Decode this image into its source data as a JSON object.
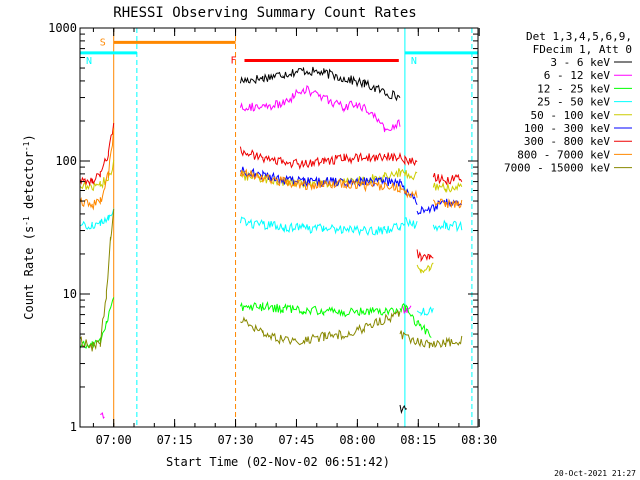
{
  "chart_data": {
    "type": "line",
    "title": "RHESSI Observing Summary Count Rates",
    "xlabel": "Start Time (02-Nov-02 06:51:42)",
    "ylabel_main": "Count Rate (s",
    "ylabel_sup1": "-1",
    "ylabel_mid": " detector",
    "ylabel_sup2": "-1",
    "ylabel_end": ")",
    "x_unit": "minutes since 06:51:42",
    "xlim": [
      0,
      98
    ],
    "ylim": [
      1,
      1000
    ],
    "yscale": "log",
    "x_ticks": [
      {
        "label": "07:00",
        "value": 8.3
      },
      {
        "label": "07:15",
        "value": 23.3
      },
      {
        "label": "07:30",
        "value": 38.3
      },
      {
        "label": "07:45",
        "value": 53.3
      },
      {
        "label": "08:00",
        "value": 68.3
      },
      {
        "label": "08:15",
        "value": 83.3
      },
      {
        "label": "08:30",
        "value": 98.3
      }
    ],
    "y_ticks": [
      {
        "label": "1",
        "value": 1
      },
      {
        "label": "10",
        "value": 10
      },
      {
        "label": "100",
        "value": 100
      },
      {
        "label": "1000",
        "value": 1000
      }
    ],
    "legend_header": [
      "Det 1,3,4,5,6,9,",
      "FDecim 1, Att 0"
    ],
    "legend_position": "outside-right",
    "timestamp": "20-Oct-2021 21:27",
    "series": [
      {
        "name": "3 - 6 keV",
        "color": "#000000",
        "segments": [
          {
            "x": [
              39.5,
              45,
              50,
              55,
              60,
              65,
              70,
              75,
              78.8
            ],
            "y": [
              400,
              420,
              450,
              480,
              460,
              420,
              380,
              330,
              300
            ]
          },
          {
            "x": [
              78.8,
              79.5,
              80.5
            ],
            "y": [
              1.5,
              1.3,
              1.4
            ]
          }
        ]
      },
      {
        "name": "6 - 12 keV",
        "color": "#ff00ff",
        "segments": [
          {
            "x": [
              39.5,
              45,
              50,
              55,
              60,
              65,
              68,
              72,
              75,
              78.8
            ],
            "y": [
              260,
              250,
              270,
              350,
              300,
              250,
              270,
              230,
              170,
              190
            ]
          },
          {
            "x": [
              79.5,
              80.5,
              81.5
            ],
            "y": [
              8,
              7.5,
              8
            ]
          },
          {
            "x": [
              5,
              5.5,
              6
            ],
            "y": [
              1.2,
              1.3,
              1.2
            ]
          }
        ]
      },
      {
        "name": "12 - 25 keV",
        "color": "#00ff00",
        "segments": [
          {
            "x": [
              0,
              3,
              5,
              6.5,
              7.5,
              8.3
            ],
            "y": [
              4,
              4.2,
              4.5,
              6,
              8,
              10
            ]
          },
          {
            "x": [
              39.5,
              45,
              50,
              55,
              60,
              65,
              70,
              75,
              78.8
            ],
            "y": [
              8,
              8,
              7.8,
              7.5,
              7.5,
              7.2,
              7.5,
              7.5,
              7.5
            ]
          },
          {
            "x": [
              78.8,
              80,
              83,
              86.5
            ],
            "y": [
              7.5,
              8,
              6,
              5
            ]
          }
        ]
      },
      {
        "name": "25 - 50 keV",
        "color": "#00ffff",
        "segments": [
          {
            "x": [
              0,
              3,
              5,
              7,
              8.3
            ],
            "y": [
              33,
              33,
              34,
              38,
              43
            ]
          },
          {
            "x": [
              39.5,
              45,
              50,
              55,
              60,
              65,
              70,
              75,
              78.8,
              80,
              83
            ],
            "y": [
              35,
              33,
              32,
              31,
              31,
              31,
              30,
              30,
              32,
              35,
              33
            ]
          },
          {
            "x": [
              83,
              84,
              86,
              87
            ],
            "y": [
              8,
              7.5,
              7.5,
              8
            ]
          },
          {
            "x": [
              87,
              90,
              94
            ],
            "y": [
              32,
              33,
              32
            ]
          }
        ]
      },
      {
        "name": "50 - 100 keV",
        "color": "#cccc00",
        "segments": [
          {
            "x": [
              0,
              3,
              5,
              7,
              8.3
            ],
            "y": [
              65,
              64,
              66,
              75,
              95
            ]
          },
          {
            "x": [
              39.5,
              45,
              50,
              55,
              60,
              65,
              70,
              75,
              78.8,
              80,
              83
            ],
            "y": [
              78,
              74,
              70,
              67,
              68,
              70,
              72,
              76,
              82,
              80,
              78
            ]
          },
          {
            "x": [
              83,
              84,
              86,
              87
            ],
            "y": [
              16,
              15.5,
              16,
              16
            ]
          },
          {
            "x": [
              87,
              90,
              94
            ],
            "y": [
              65,
              62,
              64
            ]
          }
        ]
      },
      {
        "name": "100 - 300 keV",
        "color": "#0000ff",
        "segments": [
          {
            "x": [
              39.5,
              45,
              50,
              55,
              60,
              65,
              70,
              75,
              78.8,
              80,
              83
            ],
            "y": [
              85,
              78,
              72,
              70,
              70,
              69,
              70,
              70,
              68,
              60,
              50
            ]
          },
          {
            "x": [
              83,
              87,
              90,
              94
            ],
            "y": [
              42,
              45,
              48,
              48
            ]
          }
        ]
      },
      {
        "name": "300 - 800 keV",
        "color": "#ee0000",
        "segments": [
          {
            "x": [
              0,
              3,
              5,
              7,
              8.3
            ],
            "y": [
              73,
              72,
              80,
              115,
              190
            ]
          },
          {
            "x": [
              39.5,
              45,
              50,
              55,
              60,
              65,
              70,
              75,
              78.8,
              80,
              83
            ],
            "y": [
              120,
              105,
              98,
              95,
              100,
              105,
              105,
              108,
              105,
              100,
              100
            ]
          },
          {
            "x": [
              83,
              84,
              86,
              87
            ],
            "y": [
              20,
              19,
              19.5,
              20
            ]
          },
          {
            "x": [
              87,
              90,
              94
            ],
            "y": [
              75,
              72,
              73
            ]
          }
        ]
      },
      {
        "name": "800 - 7000 keV",
        "color": "#ff8800",
        "segments": [
          {
            "x": [
              0,
              3,
              5,
              7,
              8.3
            ],
            "y": [
              48,
              47,
              50,
              80,
              165
            ]
          },
          {
            "x": [
              39.5,
              45,
              50,
              55,
              60,
              65,
              70,
              75,
              78.8,
              80,
              83
            ],
            "y": [
              82,
              75,
              70,
              66,
              66,
              68,
              65,
              65,
              62,
              58,
              55
            ]
          },
          {
            "x": [
              87,
              90,
              94
            ],
            "y": [
              50,
              48,
              48
            ]
          }
        ]
      },
      {
        "name": "7000 - 15000 keV",
        "color": "#888800",
        "segments": [
          {
            "x": [
              0,
              3,
              5,
              6.5,
              7.5,
              8.3
            ],
            "y": [
              4.5,
              4.0,
              4.3,
              10,
              25,
              45
            ]
          },
          {
            "x": [
              39.5,
              45,
              50,
              55,
              60,
              65,
              70,
              75,
              78.8
            ],
            "y": [
              6.5,
              5,
              4.5,
              4.5,
              4.8,
              5,
              5.5,
              6.5,
              7
            ]
          },
          {
            "x": [
              78.8,
              82,
              86,
              90,
              94
            ],
            "y": [
              5,
              4.5,
              4.2,
              4.3,
              4.5
            ]
          }
        ]
      }
    ],
    "flags": [
      {
        "label": "S",
        "color": "#ff8800",
        "x_start": 8.3,
        "x_end": 38.3,
        "y": 780
      },
      {
        "label": "N",
        "color": "#00ffff",
        "x_start": 0,
        "x_end": 14.0,
        "y": 650
      },
      {
        "label": "N",
        "color": "#00ffff",
        "x_start": 80.0,
        "x_end": 98,
        "y": 650
      },
      {
        "label": "F",
        "color": "#ff0000",
        "x_start": 40.5,
        "x_end": 78.5,
        "y": 570
      }
    ],
    "markers": [
      {
        "type": "dashed-vline",
        "x": 14.0,
        "color": "#00ffff"
      },
      {
        "type": "dashed-vline",
        "x": 38.3,
        "color": "#ff8800"
      },
      {
        "type": "dashed-vline",
        "x": 96.5,
        "color": "#00ffff"
      },
      {
        "type": "solid-vline",
        "x": 8.3,
        "color": "#ff8800"
      },
      {
        "type": "solid-vline",
        "x": 80.0,
        "color": "#00ffff"
      }
    ]
  }
}
